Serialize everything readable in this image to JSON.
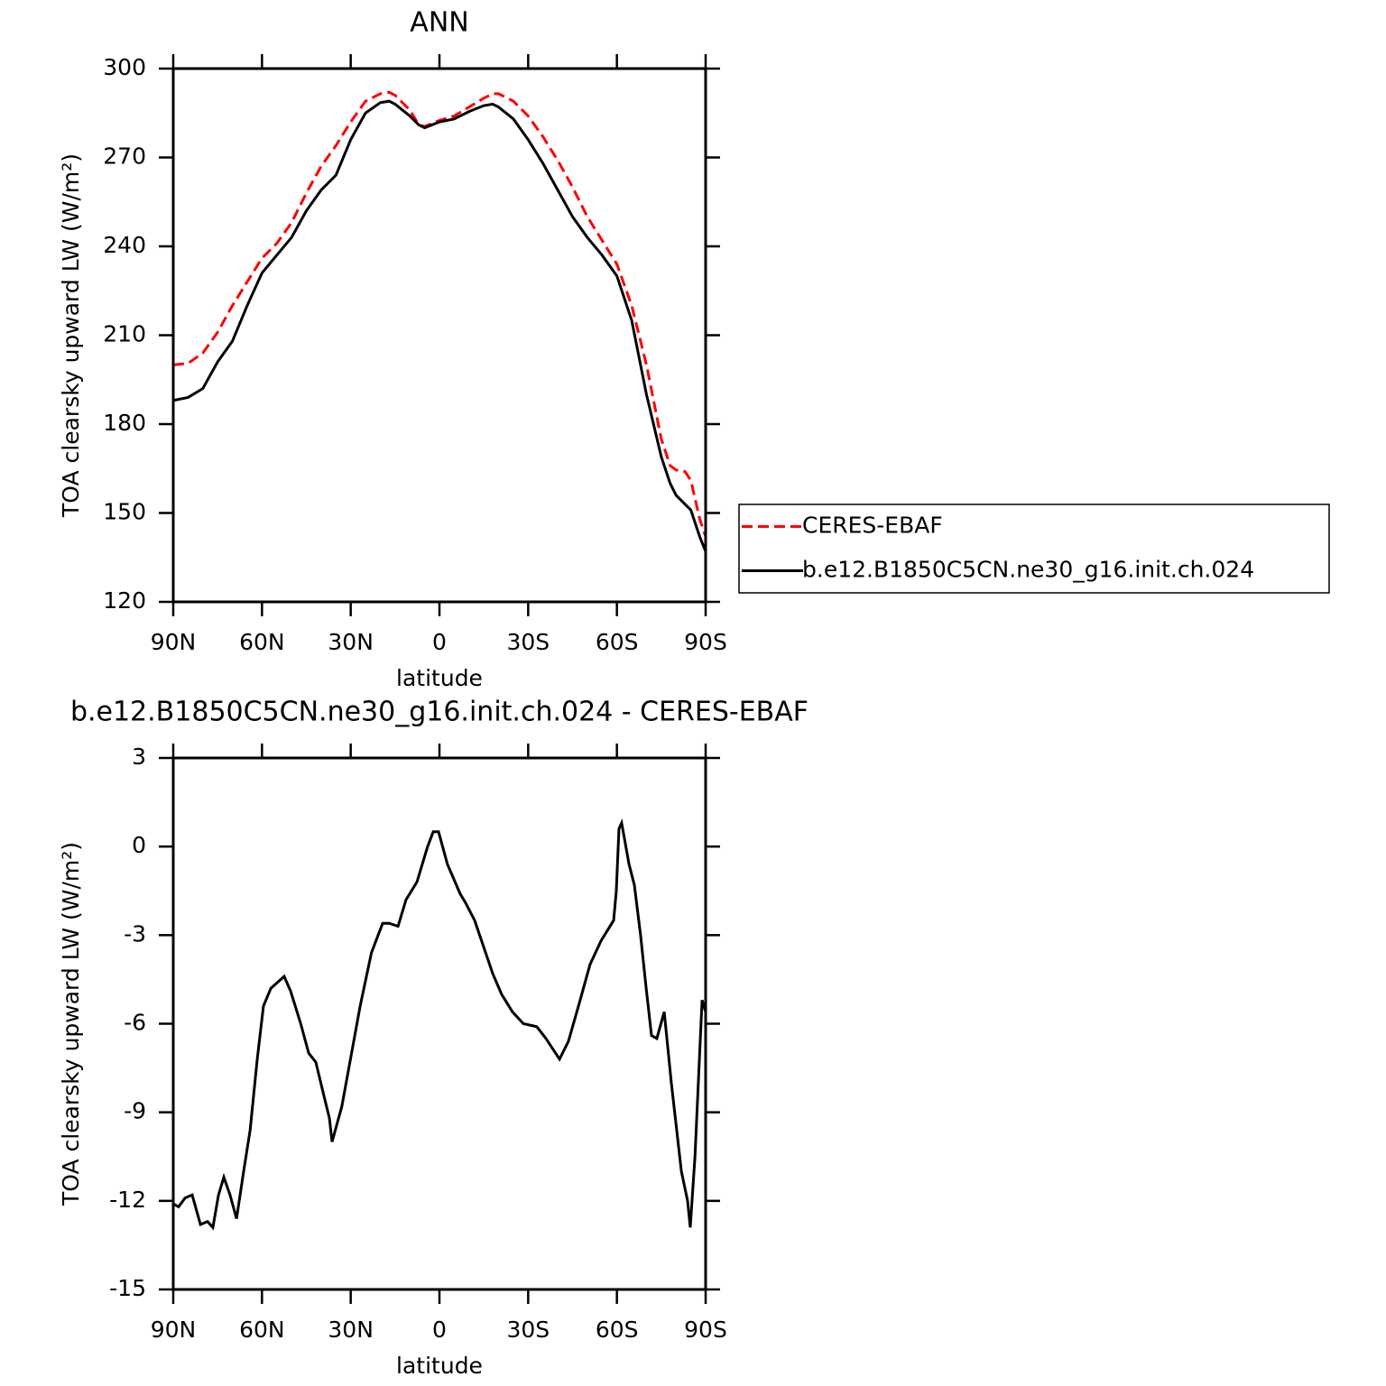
{
  "chart_data": [
    {
      "type": "line",
      "title": "ANN",
      "x_label": "latitude",
      "y_label": "TOA clearsky upward LW (W/m²)",
      "xlim": [
        90,
        -90
      ],
      "xticks": [
        {
          "value": 90,
          "label": "90N"
        },
        {
          "value": 60,
          "label": "60N"
        },
        {
          "value": 30,
          "label": "30N"
        },
        0,
        {
          "value": -30,
          "label": "30S"
        },
        {
          "value": -60,
          "label": "60S"
        },
        {
          "value": -90,
          "label": "90S"
        }
      ],
      "ylim": [
        120,
        300
      ],
      "yticks": [
        120,
        150,
        180,
        210,
        240,
        270,
        300
      ],
      "legend": "right",
      "x": [
        90,
        85,
        80,
        75,
        70,
        65,
        60,
        55,
        50,
        45,
        40,
        35,
        30,
        25,
        20,
        17,
        15,
        10,
        7,
        5,
        0,
        -5,
        -10,
        -15,
        -18,
        -20,
        -25,
        -30,
        -35,
        -40,
        -45,
        -50,
        -55,
        -60,
        -65,
        -70,
        -75,
        -78,
        -80,
        -83,
        -85,
        -88,
        -90
      ],
      "series": [
        {
          "name": "CERES-EBAF",
          "color": "#ff0000",
          "dash": true,
          "values": [
            200,
            200.5,
            204,
            211,
            220,
            228,
            236,
            241,
            248,
            258,
            267,
            274,
            282,
            289,
            291.5,
            292,
            291,
            286,
            281,
            280.5,
            282.5,
            284,
            287,
            290,
            291.5,
            291.5,
            289,
            284,
            277,
            269,
            260,
            250,
            242,
            234,
            220,
            200,
            175,
            166,
            164.5,
            164,
            161,
            148,
            142
          ]
        },
        {
          "name": "b.e12.B1850C5CN.ne30_g16.init.ch.024",
          "color": "#000000",
          "dash": false,
          "values": [
            188,
            189,
            192,
            201,
            208,
            220,
            231,
            237,
            243,
            252,
            259,
            264,
            276,
            285,
            288.5,
            289,
            288,
            284,
            281,
            280,
            282,
            283,
            285.5,
            287.5,
            288,
            287,
            283,
            276,
            268,
            259,
            250,
            243,
            237,
            230,
            215,
            190,
            169,
            160,
            156,
            153,
            151,
            142,
            137
          ]
        }
      ]
    },
    {
      "type": "line",
      "title": "b.e12.B1850C5CN.ne30_g16.init.ch.024 - CERES-EBAF",
      "x_label": "latitude",
      "y_label": "TOA clearsky upward LW (W/m²)",
      "xlim": [
        90,
        -90
      ],
      "xticks": [
        {
          "value": 90,
          "label": "90N"
        },
        {
          "value": 60,
          "label": "60N"
        },
        {
          "value": 30,
          "label": "30N"
        },
        0,
        {
          "value": -30,
          "label": "30S"
        },
        {
          "value": -60,
          "label": "60S"
        },
        {
          "value": -90,
          "label": "90S"
        }
      ],
      "ylim": [
        -15,
        3
      ],
      "yticks": [
        -15,
        -12,
        -9,
        -6,
        -3,
        0,
        3
      ],
      "x": [
        90,
        88.2,
        86,
        83.6,
        80.8,
        78.4,
        76.6,
        74.7,
        72.9,
        70.8,
        68.6,
        66.2,
        64,
        61.6,
        59.5,
        57,
        52.5,
        50.3,
        46.9,
        44.2,
        41.8,
        39.4,
        37.2,
        36.3,
        33,
        26.8,
        23,
        19.2,
        17,
        14,
        11.3,
        7.6,
        4,
        2.1,
        0.3,
        -2.7,
        -7,
        -8.8,
        -11.9,
        -18,
        -21,
        -24.7,
        -28.4,
        -32.9,
        -36,
        -40.6,
        -43.6,
        -47.3,
        -50.9,
        -54.6,
        -58.9,
        -59.8,
        -60.7,
        -61.6,
        -64.1,
        -65.9,
        -68,
        -69.9,
        -71.7,
        -73.5,
        -76,
        -78.4,
        -81.8,
        -83.9,
        -84.8,
        -86.4,
        -88.8,
        -90
      ],
      "series": [
        {
          "name": "b.e12.B1850C5CN.ne30_g16.init.ch.024 - CERES-EBAF",
          "color": "#000000",
          "dash": false,
          "values": [
            -12.1,
            -12.2,
            -11.9,
            -11.8,
            -12.8,
            -12.7,
            -12.9,
            -11.8,
            -11.2,
            -11.8,
            -12.6,
            -11.0,
            -9.6,
            -7.2,
            -5.4,
            -4.8,
            -4.4,
            -4.9,
            -6.0,
            -7.0,
            -7.3,
            -8.3,
            -9.2,
            -10.0,
            -8.8,
            -5.4,
            -3.6,
            -2.6,
            -2.6,
            -2.7,
            -1.8,
            -1.2,
            0.0,
            0.5,
            0.5,
            -0.6,
            -1.6,
            -1.9,
            -2.5,
            -4.3,
            -5.0,
            -5.6,
            -6.0,
            -6.1,
            -6.5,
            -7.2,
            -6.6,
            -5.3,
            -4.0,
            -3.2,
            -2.5,
            -1.5,
            0.6,
            0.8,
            -0.6,
            -1.3,
            -3.0,
            -4.8,
            -6.4,
            -6.5,
            -5.6,
            -8.0,
            -11.0,
            -12.0,
            -12.9,
            -10.5,
            -5.2,
            -5.6
          ]
        }
      ]
    }
  ]
}
